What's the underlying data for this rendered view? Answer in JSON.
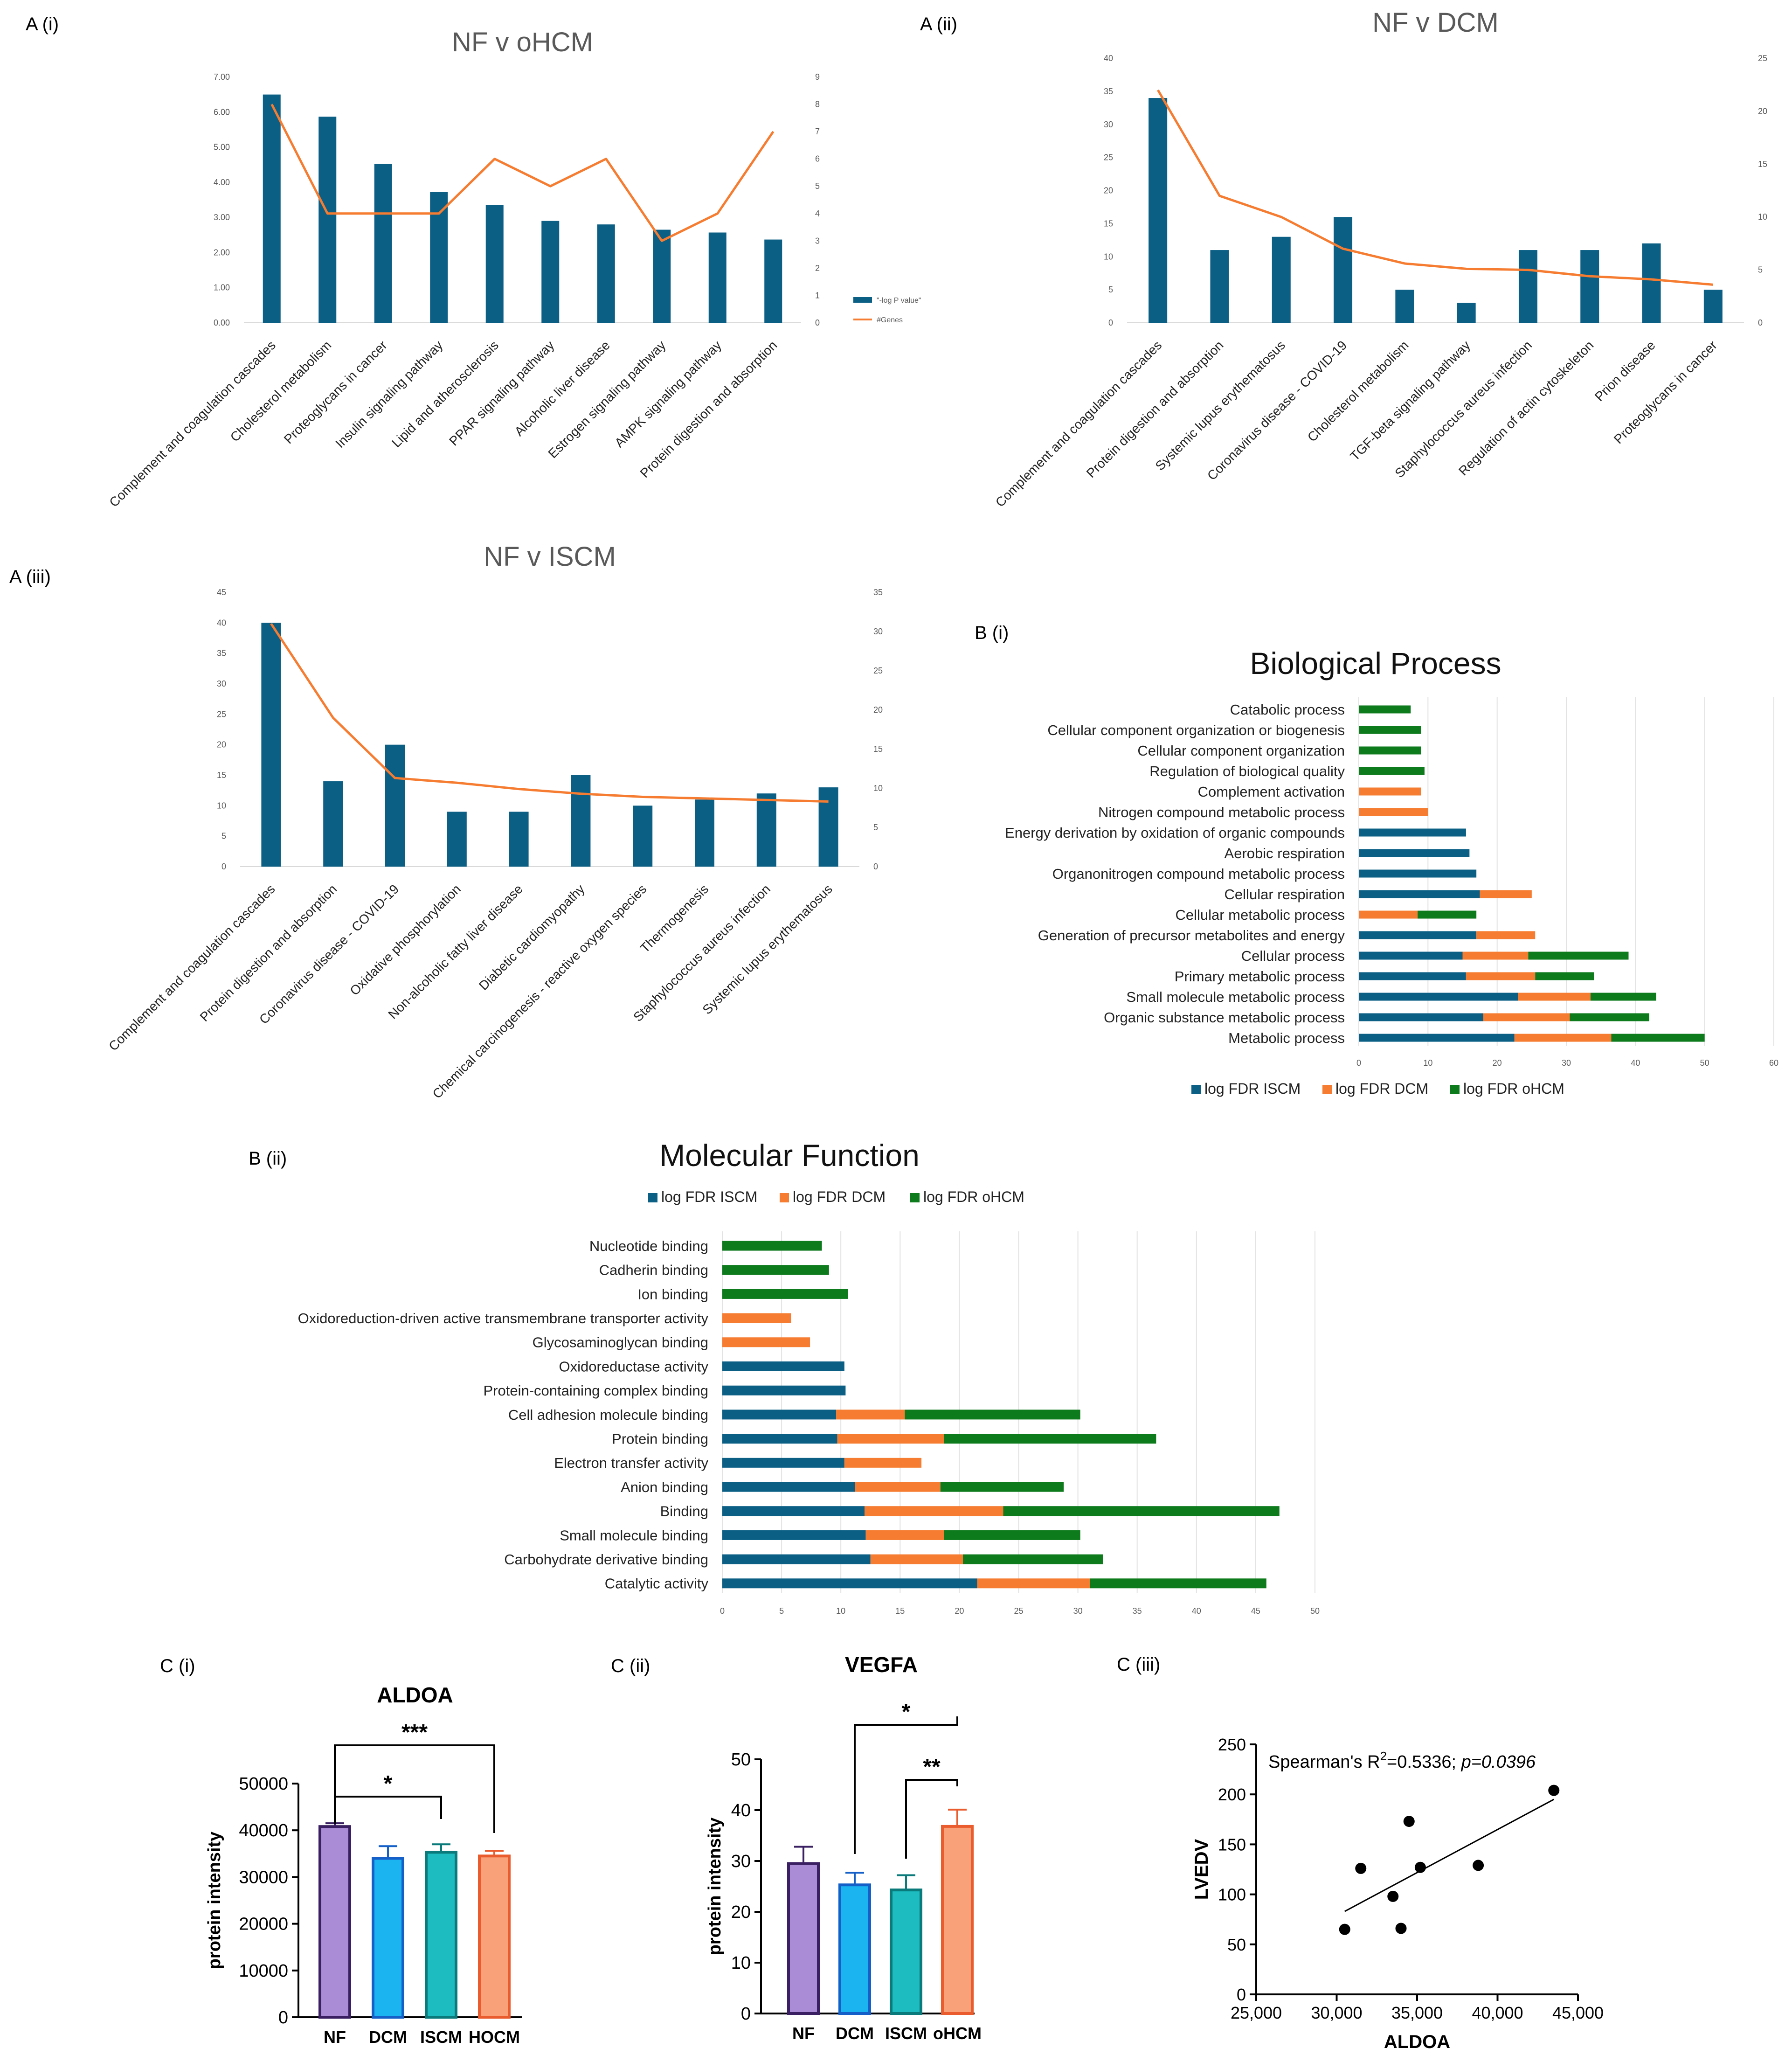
{
  "colors": {
    "blue": "#0b5f85",
    "orange": "#f57c30",
    "green": "#0d7a1c",
    "grid": "#d9d9d9",
    "axis": "#888888",
    "title": "#595959",
    "purple": "#a98bd6",
    "purple_edge": "#3a2062",
    "cyan": "#1cb4f0",
    "cyan_edge": "#1460c8",
    "teal": "#1cbcc0",
    "teal_edge": "#0a7a7a",
    "salmon": "#f9a27a",
    "salmon_edge": "#ea5b2d"
  },
  "panels": {
    "a1": "A (i)",
    "a2": "A (ii)",
    "a3": "A (iii)",
    "b1": "B (i)",
    "b2": "B (ii)",
    "c1": "C (i)",
    "c2": "C (ii)",
    "c3": "C (iii)"
  },
  "chart_data": [
    {
      "id": "a1",
      "type": "bar+line",
      "title": "NF v oHCM",
      "categories": [
        "Complement and coagulation cascades",
        "Cholesterol metabolism",
        "Proteoglycans in cancer",
        "Insulin signaling pathway",
        "Lipid and atherosclerosis",
        "PPAR signaling pathway",
        "Alcoholic liver disease",
        "Estrogen signaling pathway",
        "AMPK signaling pathway",
        "Protein digestion and absorption"
      ],
      "bars": [
        6.5,
        5.87,
        4.52,
        3.72,
        3.35,
        2.9,
        2.8,
        2.65,
        2.57,
        2.37
      ],
      "line": [
        8,
        4,
        4,
        4,
        6,
        5,
        6,
        3,
        4,
        7
      ],
      "y_left_ticks": [
        "0.00",
        "1.00",
        "2.00",
        "3.00",
        "4.00",
        "5.00",
        "6.00",
        "7.00"
      ],
      "y_right_ticks": [
        "0",
        "1",
        "2",
        "3",
        "4",
        "5",
        "6",
        "7",
        "8",
        "9"
      ],
      "ylim_left": [
        0,
        7
      ],
      "ylim_right": [
        0,
        9
      ],
      "legend": [
        "\"-log P value\"",
        "#Genes"
      ]
    },
    {
      "id": "a2",
      "type": "bar+line",
      "title": "NF v DCM",
      "categories": [
        "Complement and coagulation cascades",
        "Protein digestion and absorption",
        "Systemic lupus erythematosus",
        "Coronavirus disease - COVID-19",
        "Cholesterol metabolism",
        "TGF-beta signaling pathway",
        "Staphylococcus aureus infection",
        "Regulation of actin cytoskeleton",
        "Prion disease",
        "Proteoglycans in cancer"
      ],
      "bars": [
        34,
        11,
        13,
        16,
        5,
        3,
        11,
        11,
        12,
        5
      ],
      "line": [
        22,
        12,
        10,
        7,
        5.6,
        5.1,
        5,
        4.4,
        4.1,
        3.6
      ],
      "y_left_ticks": [
        "0",
        "5",
        "10",
        "15",
        "20",
        "25",
        "30",
        "35",
        "40"
      ],
      "y_right_ticks": [
        "0",
        "5",
        "10",
        "15",
        "20",
        "25"
      ],
      "ylim_left": [
        0,
        40
      ],
      "ylim_right": [
        0,
        25
      ]
    },
    {
      "id": "a3",
      "type": "bar+line",
      "title": "NF v ISCM",
      "categories": [
        "Complement and coagulation cascades",
        "Protein digestion and absorption",
        "Coronavirus disease - COVID-19",
        "Oxidative phosphorylation",
        "Non-alcoholic fatty liver disease",
        "Diabetic cardiomyopathy",
        "Chemical carcinogenesis - reactive oxygen species",
        "Thermogenesis",
        "Staphylococcus aureus infection",
        "Systemic lupus erythematosus"
      ],
      "bars": [
        40,
        14,
        20,
        9,
        9,
        15,
        10,
        11,
        12,
        13
      ],
      "line": [
        31,
        19,
        11.3,
        10.7,
        9.9,
        9.3,
        8.9,
        8.7,
        8.5,
        8.3
      ],
      "y_left_ticks": [
        "0",
        "5",
        "10",
        "15",
        "20",
        "25",
        "30",
        "35",
        "40",
        "45"
      ],
      "y_right_ticks": [
        "0",
        "5",
        "10",
        "15",
        "20",
        "25",
        "30",
        "35"
      ],
      "ylim_left": [
        0,
        45
      ],
      "ylim_right": [
        0,
        35
      ]
    },
    {
      "id": "b1",
      "type": "stacked-hbar",
      "title": "Biological Process",
      "categories": [
        "Catabolic process",
        "Cellular component organization or biogenesis",
        "Cellular component organization",
        "Regulation of biological quality",
        "Complement activation",
        "Nitrogen compound metabolic process",
        "Energy derivation by oxidation of organic compounds",
        "Aerobic respiration",
        "Organonitrogen compound metabolic process",
        "Cellular respiration",
        "Cellular metabolic process",
        "Generation of precursor metabolites and energy",
        "Cellular process",
        "Primary metabolic process",
        "Small molecule metabolic process",
        "Organic substance metabolic process",
        "Metabolic process"
      ],
      "series": [
        {
          "name": "log FDR ISCM",
          "values": [
            0,
            0,
            0,
            0,
            0,
            0,
            15.5,
            16,
            17,
            17.5,
            0,
            17,
            15,
            15.5,
            23,
            18,
            22.5
          ]
        },
        {
          "name": "log FDR DCM",
          "values": [
            0,
            0,
            0,
            0,
            9,
            10,
            0,
            0,
            0,
            7.5,
            8.5,
            8.5,
            9.5,
            10,
            10.5,
            12.5,
            14
          ]
        },
        {
          "name": "log FDR oHCM",
          "values": [
            7.5,
            9,
            9,
            9.5,
            0,
            0,
            0,
            0,
            0,
            0,
            8.5,
            0,
            14.5,
            8.5,
            9.5,
            11.5,
            13.5
          ]
        }
      ],
      "x_ticks": [
        "0",
        "10",
        "20",
        "30",
        "40",
        "50",
        "60"
      ],
      "xlim": [
        0,
        60
      ]
    },
    {
      "id": "b2",
      "type": "stacked-hbar",
      "title": "Molecular Function",
      "categories": [
        "Nucleotide binding",
        "Cadherin binding",
        "Ion binding",
        "Oxidoreduction-driven active transmembrane transporter activity",
        "Glycosaminoglycan binding",
        "Oxidoreductase activity",
        "Protein-containing complex binding",
        "Cell adhesion molecule binding",
        "Protein binding",
        "Electron transfer activity",
        "Anion binding",
        "Binding",
        "Small molecule binding",
        "Carbohydrate derivative binding",
        "Catalytic activity"
      ],
      "series": [
        {
          "name": "log FDR ISCM",
          "values": [
            0,
            0,
            0,
            0,
            0,
            10.3,
            10.4,
            9.6,
            9.7,
            10.3,
            11.2,
            12,
            12.1,
            12.5,
            21.5
          ]
        },
        {
          "name": "log FDR DCM",
          "values": [
            0,
            0,
            0,
            5.8,
            7.4,
            0,
            0,
            5.8,
            9,
            6.5,
            7.2,
            11.7,
            6.6,
            7.8,
            9.5
          ]
        },
        {
          "name": "log FDR oHCM",
          "values": [
            8.4,
            9,
            10.6,
            0,
            0,
            0,
            0,
            14.8,
            17.9,
            0,
            10.4,
            23.3,
            11.5,
            11.8,
            14.9
          ]
        }
      ],
      "x_ticks": [
        "0",
        "5",
        "10",
        "15",
        "20",
        "25",
        "30",
        "35",
        "40",
        "45",
        "50"
      ],
      "xlim": [
        0,
        50
      ]
    },
    {
      "id": "c1",
      "type": "bar-errorbar",
      "title": "ALDOA",
      "ylabel": "protein intensity",
      "categories": [
        "NF",
        "DCM",
        "ISCM",
        "HOCM"
      ],
      "values": [
        40800,
        34000,
        35300,
        34500
      ],
      "errors": [
        700,
        2600,
        1700,
        1100
      ],
      "y_ticks": [
        "0",
        "10000",
        "20000",
        "30000",
        "40000",
        "50000"
      ],
      "ylim": [
        0,
        50000
      ],
      "sig": [
        {
          "from": 0,
          "to": 2,
          "label": "*"
        },
        {
          "from": 0,
          "to": 3,
          "label": "***"
        }
      ]
    },
    {
      "id": "c2",
      "type": "bar-errorbar",
      "title": "VEGFA",
      "ylabel": "protein intensity",
      "categories": [
        "NF",
        "DCM",
        "ISCM",
        "oHCM"
      ],
      "values": [
        29.5,
        25.3,
        24.3,
        36.8
      ],
      "errors": [
        3.3,
        2.4,
        2.9,
        3.3
      ],
      "y_ticks": [
        "0",
        "10",
        "20",
        "30",
        "40",
        "50"
      ],
      "ylim": [
        0,
        50
      ],
      "sig": [
        {
          "from": 1,
          "to": 3,
          "label": "*"
        },
        {
          "from": 2,
          "to": 3,
          "label": "**"
        }
      ]
    },
    {
      "id": "c3",
      "type": "scatter",
      "xlabel": "ALDOA",
      "ylabel": "LVEDV",
      "annotation_prefix": "Spearman's R",
      "annotation_sup": "2",
      "annotation_value": "=0.5336; ",
      "annotation_p": "p=0.0396",
      "points": [
        [
          30500,
          65
        ],
        [
          31500,
          126
        ],
        [
          33500,
          98
        ],
        [
          34000,
          66
        ],
        [
          34500,
          173
        ],
        [
          35200,
          127
        ],
        [
          38800,
          129
        ],
        [
          43500,
          204
        ]
      ],
      "fit": [
        [
          30500,
          83
        ],
        [
          43500,
          195
        ]
      ],
      "x_ticks": [
        "25,000",
        "30,000",
        "35,000",
        "40,000",
        "45,000"
      ],
      "xlim": [
        25000,
        45000
      ],
      "y_ticks": [
        "0",
        "50",
        "100",
        "150",
        "200",
        "250"
      ],
      "ylim": [
        0,
        250
      ]
    }
  ]
}
